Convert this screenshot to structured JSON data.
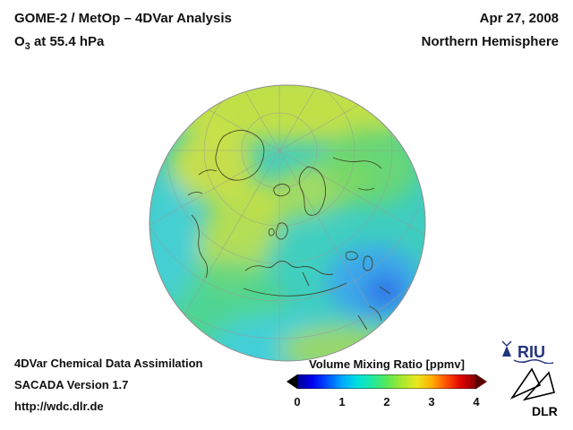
{
  "header": {
    "title": "GOME-2 / MetOp – 4DVar Analysis",
    "subtitle": {
      "base": "O",
      "sub": "3",
      "rest": " at 55.4 hPa"
    },
    "date": "Apr 27, 2008",
    "region": "Northern Hemisphere"
  },
  "footer": {
    "line1": "4DVar Chemical Data Assimilation",
    "line2": "SACADA Version 1.7",
    "line3": "http://wdc.dlr.de"
  },
  "colorbar": {
    "title": "Volume Mixing Ratio [ppmv]",
    "ticks": [
      "0",
      "1",
      "2",
      "3",
      "4"
    ],
    "gradient": [
      "#000090",
      "#0000f0",
      "#0050ff",
      "#00a8ff",
      "#00e0e0",
      "#20e8a0",
      "#58e858",
      "#a8e830",
      "#e8e820",
      "#ffb000",
      "#ff5000",
      "#e00000",
      "#800000"
    ],
    "under_color": "#000000",
    "over_color": "#5e0000"
  },
  "logos": {
    "riu": "RIU",
    "dlr": "DLR"
  },
  "chart_data": {
    "type": "heatmap",
    "projection": "orthographic-globe",
    "title": "GOME-2 / MetOp – 4DVar Analysis",
    "variable": "O3 volume mixing ratio at 55.4 hPa",
    "date": "Apr 27, 2008",
    "region": "Northern Hemisphere",
    "colorbar": {
      "label": "Volume Mixing Ratio [ppmv]",
      "range": [
        0,
        4
      ],
      "ticks": [
        0,
        1,
        2,
        3,
        4
      ],
      "palette": "rainbow (dark blue → blue → cyan → green → yellow → orange → dark red)"
    },
    "field_values_ppmv": [
      {
        "region": "Arctic rim / top limb of globe",
        "value": 2.4
      },
      {
        "region": "Greenland / North Atlantic maximum",
        "value": 2.5
      },
      {
        "region": "Central Europe yellow-green band",
        "value": 2.2
      },
      {
        "region": "Broad mid-latitude cyan background",
        "value": 1.6
      },
      {
        "region": "Upper-right (Siberia) green patch",
        "value": 2.0
      },
      {
        "region": "Lower-right blue minimum (Middle East / Caspian)",
        "value": 1.0
      },
      {
        "region": "Bottom limb subtropical yellow-green",
        "value": 2.1
      }
    ],
    "grid": "gray graticule (meridians/parallels) overlaid, coastlines drawn in dark olive"
  }
}
